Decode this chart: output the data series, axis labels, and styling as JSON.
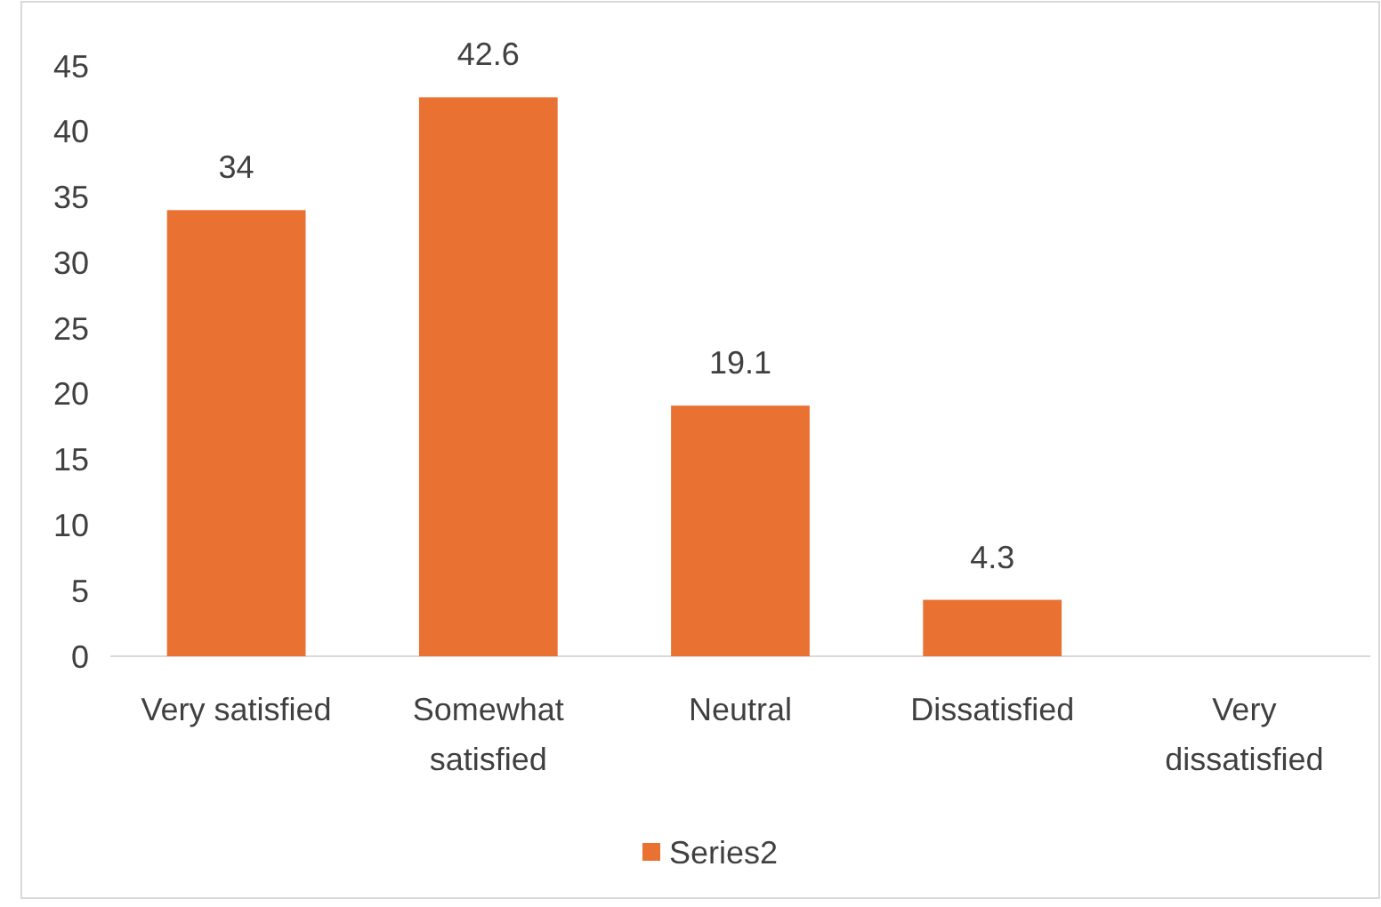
{
  "chart_data": {
    "type": "bar",
    "categories": [
      "Very satisfied",
      "Somewhat satisfied",
      "Neutral",
      "Dissatisfied",
      "Very dissatisfied"
    ],
    "series": [
      {
        "name": "Series2",
        "color": "#e97132",
        "values": [
          34,
          42.6,
          19.1,
          4.3,
          null
        ]
      }
    ],
    "ylim": [
      0,
      45
    ],
    "yticks": [
      0,
      5,
      10,
      15,
      20,
      25,
      30,
      35,
      40,
      45
    ],
    "grid": false,
    "data_labels": true,
    "legend": "bottom"
  }
}
